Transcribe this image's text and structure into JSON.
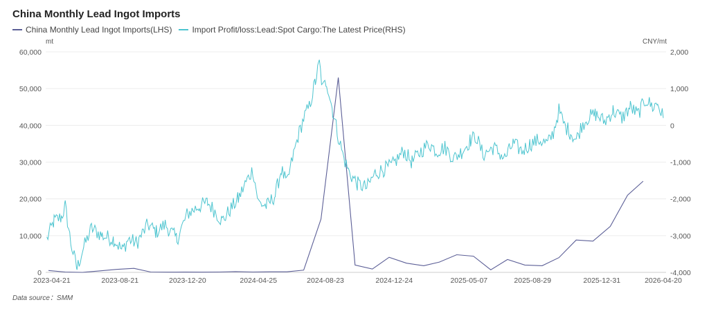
{
  "title": "China Monthly Lead Ingot Imports",
  "source": "Data source：SMM",
  "chart_data": {
    "type": "line",
    "title": "China Monthly Lead Ingot Imports",
    "left_axis": {
      "unit": "mt",
      "min": 0,
      "max": 60000,
      "ticks": [
        "60,000",
        "50,000",
        "40,000",
        "30,000",
        "20,000",
        "10,000",
        "0"
      ]
    },
    "right_axis": {
      "unit": "CNY/mt",
      "min": -4000,
      "max": 2000,
      "ticks": [
        "2,000",
        "1,000",
        "0",
        "-1,000",
        "-2,000",
        "-3,000",
        "-4,000"
      ]
    },
    "x_tick_labels": [
      "2023-04-21",
      "2023-08-21",
      "2023-12-20",
      "2024-04-25",
      "2024-08-23",
      "2024-12-24",
      "2025-05-07",
      "2025-08-29",
      "2025-12-31",
      "2026-04-20"
    ],
    "x_tick_dates": [
      "2023-04-21",
      "2023-08-21",
      "2023-12-20",
      "2024-04-25",
      "2024-08-23",
      "2024-12-24",
      "2025-05-07",
      "2025-08-29",
      "2025-12-31",
      "2026-04-20"
    ],
    "x_range": [
      "2023-04-10",
      "2026-04-25"
    ],
    "series": [
      {
        "name": "China Monthly Lead Ingot Imports(LHS)",
        "axis": "left",
        "color": "#5b5e96",
        "points": [
          [
            "2023-04-15",
            500
          ],
          [
            "2023-05-15",
            100
          ],
          [
            "2023-06-15",
            0
          ],
          [
            "2023-07-15",
            400
          ],
          [
            "2023-08-15",
            800
          ],
          [
            "2023-09-15",
            1100
          ],
          [
            "2023-10-15",
            100
          ],
          [
            "2023-11-15",
            50
          ],
          [
            "2023-12-15",
            80
          ],
          [
            "2024-01-15",
            60
          ],
          [
            "2024-02-15",
            100
          ],
          [
            "2024-03-15",
            200
          ],
          [
            "2024-04-15",
            100
          ],
          [
            "2024-05-15",
            150
          ],
          [
            "2024-06-15",
            150
          ],
          [
            "2024-07-15",
            600
          ],
          [
            "2024-08-15",
            14500
          ],
          [
            "2024-09-15",
            53000
          ],
          [
            "2024-10-15",
            2000
          ],
          [
            "2024-11-15",
            900
          ],
          [
            "2024-12-15",
            4100
          ],
          [
            "2025-01-15",
            2500
          ],
          [
            "2025-02-15",
            1800
          ],
          [
            "2025-03-15",
            2800
          ],
          [
            "2025-04-15",
            4800
          ],
          [
            "2025-05-15",
            4400
          ],
          [
            "2025-06-15",
            700
          ],
          [
            "2025-07-15",
            3500
          ],
          [
            "2025-08-15",
            2000
          ],
          [
            "2025-09-15",
            1800
          ],
          [
            "2025-10-15",
            4000
          ],
          [
            "2025-11-15",
            8800
          ],
          [
            "2025-12-15",
            8500
          ],
          [
            "2026-01-15",
            12500
          ],
          [
            "2026-02-15",
            21000
          ],
          [
            "2026-03-15",
            24800
          ]
        ]
      },
      {
        "name": "Import Profit/loss:Lead:Spot Cargo:The Latest Price(RHS)",
        "axis": "right",
        "color": "#4cc4cf",
        "anchors": [
          [
            "2023-04-12",
            -3100
          ],
          [
            "2023-04-25",
            -2600
          ],
          [
            "2023-05-08",
            -2500
          ],
          [
            "2023-05-15",
            -2200
          ],
          [
            "2023-05-25",
            -3200
          ],
          [
            "2023-06-05",
            -3900
          ],
          [
            "2023-06-15",
            -3400
          ],
          [
            "2023-07-01",
            -2800
          ],
          [
            "2023-07-20",
            -3000
          ],
          [
            "2023-08-10",
            -3100
          ],
          [
            "2023-08-25",
            -3400
          ],
          [
            "2023-09-05",
            -3100
          ],
          [
            "2023-09-20",
            -3200
          ],
          [
            "2023-10-10",
            -2700
          ],
          [
            "2023-10-25",
            -2900
          ],
          [
            "2023-11-10",
            -2700
          ],
          [
            "2023-12-01",
            -3100
          ],
          [
            "2023-12-20",
            -2400
          ],
          [
            "2024-01-10",
            -2200
          ],
          [
            "2024-01-25",
            -2100
          ],
          [
            "2024-02-05",
            -2300
          ],
          [
            "2024-02-20",
            -2600
          ],
          [
            "2024-03-05",
            -2300
          ],
          [
            "2024-03-20",
            -2000
          ],
          [
            "2024-04-01",
            -1600
          ],
          [
            "2024-04-15",
            -1200
          ],
          [
            "2024-04-25",
            -2100
          ],
          [
            "2024-05-10",
            -2200
          ],
          [
            "2024-05-25",
            -1900
          ],
          [
            "2024-06-05",
            -1200
          ],
          [
            "2024-06-15",
            -1600
          ],
          [
            "2024-06-25",
            -900
          ],
          [
            "2024-07-05",
            -300
          ],
          [
            "2024-07-15",
            200
          ],
          [
            "2024-07-25",
            500
          ],
          [
            "2024-08-05",
            1200
          ],
          [
            "2024-08-12",
            1700
          ],
          [
            "2024-08-18",
            1000
          ],
          [
            "2024-08-25",
            1200
          ],
          [
            "2024-09-05",
            400
          ],
          [
            "2024-09-15",
            -300
          ],
          [
            "2024-09-25",
            -900
          ],
          [
            "2024-10-05",
            -1300
          ],
          [
            "2024-10-20",
            -1600
          ],
          [
            "2024-11-05",
            -1700
          ],
          [
            "2024-11-20",
            -1300
          ],
          [
            "2024-12-05",
            -1200
          ],
          [
            "2024-12-20",
            -1100
          ],
          [
            "2025-01-10",
            -700
          ],
          [
            "2025-01-25",
            -1000
          ],
          [
            "2025-02-10",
            -700
          ],
          [
            "2025-02-25",
            -500
          ],
          [
            "2025-03-10",
            -700
          ],
          [
            "2025-03-25",
            -600
          ],
          [
            "2025-04-10",
            -900
          ],
          [
            "2025-04-25",
            -700
          ],
          [
            "2025-05-10",
            -400
          ],
          [
            "2025-05-20",
            -300
          ],
          [
            "2025-06-01",
            -800
          ],
          [
            "2025-06-20",
            -600
          ],
          [
            "2025-07-10",
            -900
          ],
          [
            "2025-07-25",
            -500
          ],
          [
            "2025-08-10",
            -700
          ],
          [
            "2025-08-25",
            -500
          ],
          [
            "2025-09-10",
            -400
          ],
          [
            "2025-09-25",
            -500
          ],
          [
            "2025-10-05",
            -200
          ],
          [
            "2025-10-15",
            400
          ],
          [
            "2025-10-25",
            0
          ],
          [
            "2025-11-05",
            -200
          ],
          [
            "2025-11-15",
            -400
          ],
          [
            "2025-11-25",
            0
          ],
          [
            "2025-12-05",
            200
          ],
          [
            "2025-12-20",
            300
          ],
          [
            "2026-01-05",
            100
          ],
          [
            "2026-01-20",
            400
          ],
          [
            "2026-02-05",
            200
          ],
          [
            "2026-02-20",
            500
          ],
          [
            "2026-03-05",
            300
          ],
          [
            "2026-03-20",
            700
          ],
          [
            "2026-04-01",
            500
          ],
          [
            "2026-04-10",
            600
          ],
          [
            "2026-04-20",
            200
          ]
        ]
      }
    ]
  }
}
